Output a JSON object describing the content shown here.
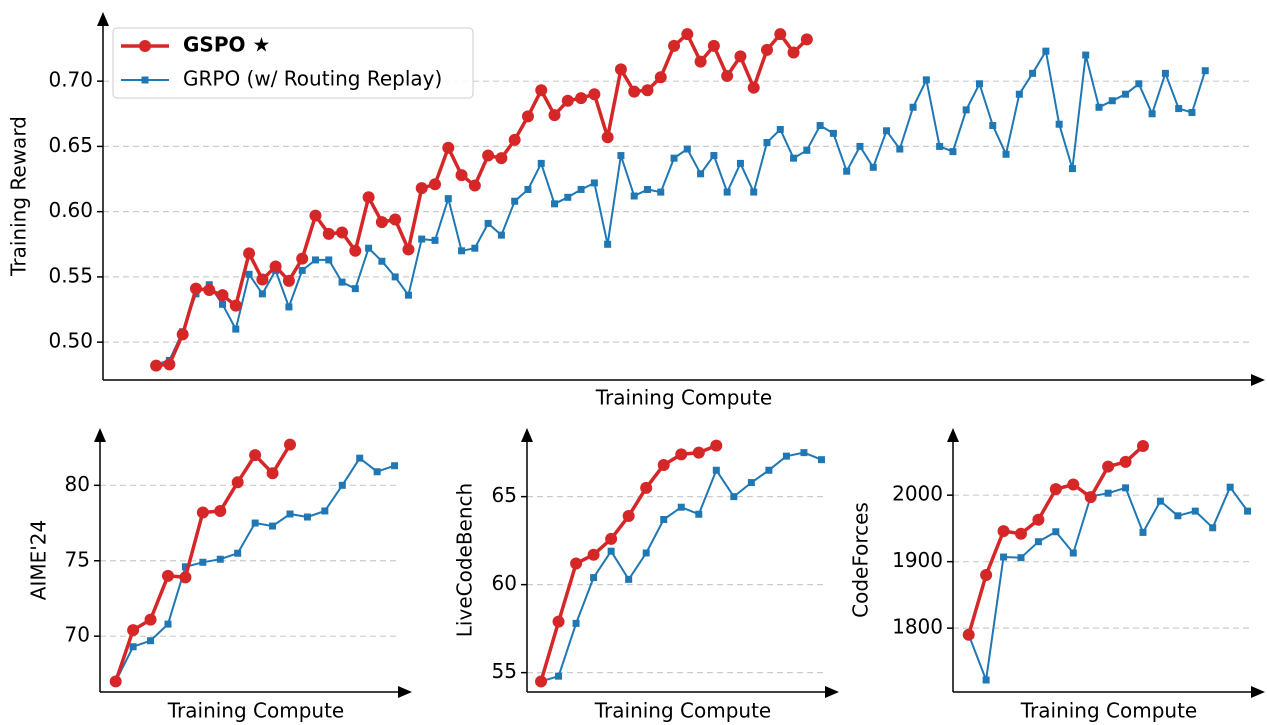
{
  "chart_data": [
    {
      "type": "line",
      "y_label": "Training Reward",
      "x_label": "Training Compute",
      "legend": "upper left",
      "xlim": [
        -4,
        83.5
      ],
      "ylim": [
        0.471,
        0.753
      ],
      "yticks": [
        {
          "value": 0.5,
          "label": "0.50"
        },
        {
          "value": 0.55,
          "label": "0.55"
        },
        {
          "value": 0.6,
          "label": "0.60"
        },
        {
          "value": 0.65,
          "label": "0.65"
        },
        {
          "value": 0.7,
          "label": "0.70"
        }
      ],
      "grid": true,
      "series": [
        {
          "name": "GRPO (w/ Routing Replay)",
          "color": "#1f77b4",
          "marker": "square",
          "x": [
            0,
            1,
            2,
            3,
            4,
            5,
            6,
            7,
            8,
            9,
            10,
            11,
            12,
            13,
            14,
            15,
            16,
            17,
            18,
            19,
            20,
            21,
            22,
            23,
            24,
            25,
            26,
            27,
            28,
            29,
            30,
            31,
            32,
            33,
            34,
            35,
            36,
            37,
            38,
            39,
            40,
            41,
            42,
            43,
            44,
            45,
            46,
            47,
            48,
            49,
            50,
            51,
            52,
            53,
            54,
            55,
            56,
            57,
            58,
            59,
            60,
            61,
            62,
            63,
            64,
            65,
            66,
            67,
            68,
            69,
            70,
            71,
            72,
            73,
            74,
            75,
            76,
            77,
            78,
            79
          ],
          "values": [
            0.483,
            0.486,
            0.508,
            0.537,
            0.544,
            0.529,
            0.51,
            0.552,
            0.537,
            0.555,
            0.527,
            0.555,
            0.563,
            0.563,
            0.546,
            0.541,
            0.572,
            0.562,
            0.55,
            0.536,
            0.579,
            0.578,
            0.61,
            0.57,
            0.572,
            0.591,
            0.582,
            0.608,
            0.617,
            0.637,
            0.606,
            0.611,
            0.617,
            0.622,
            0.575,
            0.643,
            0.612,
            0.617,
            0.615,
            0.641,
            0.648,
            0.629,
            0.643,
            0.615,
            0.637,
            0.615,
            0.653,
            0.663,
            0.641,
            0.647,
            0.666,
            0.66,
            0.631,
            0.65,
            0.634,
            0.662,
            0.648,
            0.68,
            0.701,
            0.65,
            0.646,
            0.678,
            0.698,
            0.666,
            0.644,
            0.69,
            0.706,
            0.723,
            0.667,
            0.633,
            0.72,
            0.68,
            0.685,
            0.69,
            0.698,
            0.675,
            0.706,
            0.679,
            0.676,
            0.708
          ]
        },
        {
          "name": "GSPO ★",
          "color": "#d62728",
          "marker": "circle",
          "x": [
            0,
            1,
            2,
            3,
            4,
            5,
            6,
            7,
            8,
            9,
            10,
            11,
            12,
            13,
            14,
            15,
            16,
            17,
            18,
            19,
            20,
            21,
            22,
            23,
            24,
            25,
            26,
            27,
            28,
            29,
            30,
            31,
            32,
            33,
            34,
            35,
            36,
            37,
            38,
            39,
            40,
            41,
            42,
            43,
            44,
            45,
            46,
            47,
            48,
            49
          ],
          "values": [
            0.482,
            0.483,
            0.506,
            0.541,
            0.54,
            0.536,
            0.528,
            0.568,
            0.548,
            0.558,
            0.547,
            0.564,
            0.597,
            0.583,
            0.584,
            0.57,
            0.611,
            0.592,
            0.594,
            0.571,
            0.618,
            0.621,
            0.649,
            0.628,
            0.62,
            0.643,
            0.641,
            0.655,
            0.673,
            0.693,
            0.674,
            0.685,
            0.687,
            0.69,
            0.657,
            0.709,
            0.692,
            0.693,
            0.703,
            0.727,
            0.736,
            0.715,
            0.727,
            0.704,
            0.719,
            0.695,
            0.724,
            0.736,
            0.722,
            0.732
          ]
        }
      ]
    },
    {
      "type": "line",
      "y_label": "AIME'24",
      "x_label": "Training Compute",
      "xlim": [
        -0.9,
        17.0
      ],
      "ylim": [
        66.3,
        83.8
      ],
      "yticks": [
        70,
        75,
        80
      ],
      "grid": true,
      "series": [
        {
          "color": "#1f77b4",
          "marker": "square",
          "x": [
            0,
            1,
            2,
            3,
            4,
            5,
            6,
            7,
            8,
            9,
            10,
            11,
            12,
            13,
            14,
            15,
            16
          ],
          "values": [
            67.0,
            69.3,
            69.7,
            70.8,
            74.6,
            74.9,
            75.1,
            75.5,
            77.5,
            77.3,
            78.1,
            77.9,
            78.3,
            80.0,
            81.8,
            80.9,
            81.3
          ]
        },
        {
          "color": "#d62728",
          "marker": "circle",
          "x": [
            0,
            1,
            2,
            3,
            4,
            5,
            6,
            7,
            8,
            9,
            10
          ],
          "values": [
            67.0,
            70.4,
            71.1,
            74.0,
            73.9,
            78.2,
            78.3,
            80.2,
            82.0,
            80.8,
            82.7
          ]
        }
      ]
    },
    {
      "type": "line",
      "y_label": "LiveCodeBench",
      "x_label": "Training Compute",
      "xlim": [
        -0.8,
        17.0
      ],
      "ylim": [
        53.9,
        68.9
      ],
      "yticks": [
        55,
        60,
        65
      ],
      "grid": true,
      "series": [
        {
          "color": "#1f77b4",
          "marker": "square",
          "x": [
            0,
            1,
            2,
            3,
            4,
            5,
            6,
            7,
            8,
            9,
            10,
            11,
            12,
            13,
            14,
            15,
            16
          ],
          "values": [
            54.5,
            54.8,
            57.8,
            60.4,
            61.9,
            60.3,
            61.8,
            63.7,
            64.4,
            64.0,
            66.5,
            65.0,
            65.8,
            66.5,
            67.3,
            67.5,
            67.1
          ]
        },
        {
          "color": "#d62728",
          "marker": "circle",
          "x": [
            0,
            1,
            2,
            3,
            4,
            5,
            6,
            7,
            8,
            9,
            10
          ],
          "values": [
            54.5,
            57.9,
            61.2,
            61.7,
            62.6,
            63.9,
            65.5,
            66.8,
            67.4,
            67.5,
            67.9
          ]
        }
      ]
    },
    {
      "type": "line",
      "y_label": "CodeForces",
      "x_label": "Training Compute",
      "xlim": [
        -0.9,
        17.0
      ],
      "ylim": [
        1704,
        2101
      ],
      "yticks": [
        1800,
        1900,
        2000
      ],
      "grid": true,
      "series": [
        {
          "color": "#1f77b4",
          "marker": "square",
          "x": [
            0,
            1,
            2,
            3,
            4,
            5,
            6,
            7,
            8,
            9,
            10,
            11,
            12,
            13,
            14,
            15,
            16
          ],
          "values": [
            1790,
            1722,
            1907,
            1906,
            1930,
            1945,
            1913,
            1998,
            2003,
            2011,
            1944,
            1991,
            1969,
            1976,
            1951,
            2012,
            1976
          ]
        },
        {
          "color": "#d62728",
          "marker": "circle",
          "x": [
            0,
            1,
            2,
            3,
            4,
            5,
            6,
            7,
            8,
            9,
            10
          ],
          "values": [
            1790,
            1880,
            1946,
            1942,
            1963,
            2009,
            2016,
            1997,
            2043,
            2050,
            2074
          ]
        }
      ]
    }
  ]
}
